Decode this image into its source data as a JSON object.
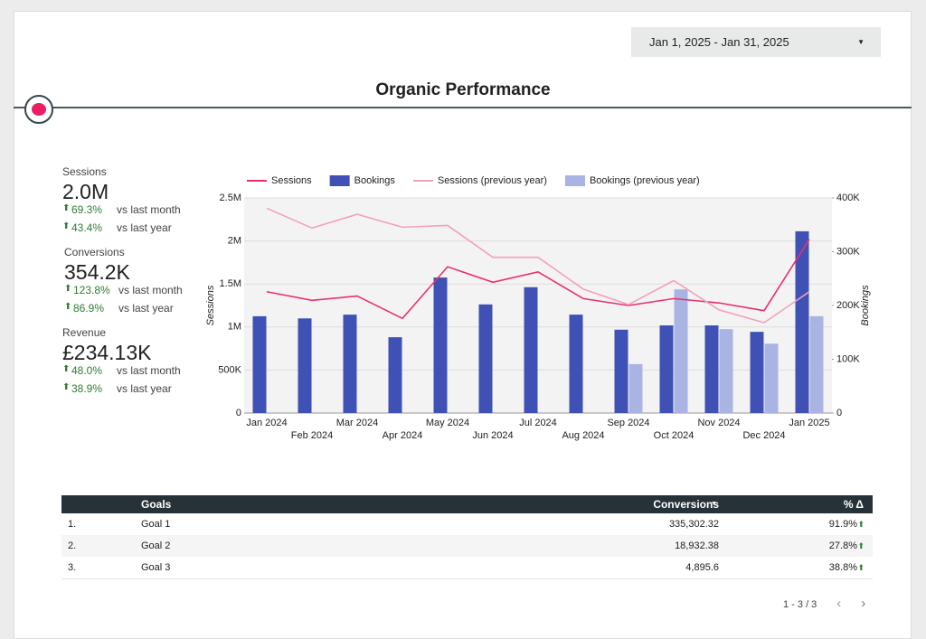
{
  "header": {
    "date_range": "Jan 1, 2025 - Jan 31, 2025",
    "title": "Organic Performance"
  },
  "kpis": [
    {
      "label": "Sessions",
      "value": "2.0M",
      "deltas": [
        {
          "value": "69.3%",
          "label": "vs last month"
        },
        {
          "value": "43.4%",
          "label": "vs last year"
        }
      ]
    },
    {
      "label": "Conversions",
      "value": "354.2K",
      "deltas": [
        {
          "value": "123.8%",
          "label": "vs last month"
        },
        {
          "value": "86.9%",
          "label": "vs last year"
        }
      ]
    },
    {
      "label": "Revenue",
      "value": "£234.13K",
      "deltas": [
        {
          "value": "48.0%",
          "label": "vs last month"
        },
        {
          "value": "38.9%",
          "label": "vs last year"
        }
      ]
    }
  ],
  "chart_data": {
    "type": "combo",
    "y_label": "Sessions",
    "y2_label": "Bookings",
    "grid": true,
    "categories": [
      "Jan 2024",
      "Feb 2024",
      "Mar 2024",
      "Apr 2024",
      "May 2024",
      "Jun 2024",
      "Jul 2024",
      "Aug 2024",
      "Sep 2024",
      "Oct 2024",
      "Nov 2024",
      "Dec 2024",
      "Jan 2025"
    ],
    "ylim": [
      0,
      2500000
    ],
    "yticks": [
      0,
      {
        "value": 500000,
        "label": "500K"
      },
      {
        "value": 1000000,
        "label": "1M"
      },
      {
        "value": 1500000,
        "label": "1.5M"
      },
      {
        "value": 2000000,
        "label": "2M"
      },
      {
        "value": 2500000,
        "label": "2.5M"
      }
    ],
    "y2lim": [
      0,
      400000
    ],
    "y2ticks": [
      0,
      {
        "value": 100000,
        "label": "100K"
      },
      {
        "value": 200000,
        "label": "200K"
      },
      {
        "value": 300000,
        "label": "300K"
      },
      {
        "value": 400000,
        "label": "400K"
      }
    ],
    "series": [
      {
        "name": "Sessions",
        "type": "line",
        "color": "#e8316a",
        "values": [
          1410000,
          1310000,
          1360000,
          1100000,
          1700000,
          1520000,
          1640000,
          1330000,
          1250000,
          1330000,
          1280000,
          1190000,
          2020000
        ]
      },
      {
        "name": "Bookings",
        "type": "bar",
        "axis": "y2",
        "color": "#3f51b5",
        "values": [
          180000,
          176000,
          183000,
          141000,
          252000,
          202000,
          234000,
          183000,
          155000,
          163000,
          163000,
          151000,
          338000
        ]
      },
      {
        "name": "Sessions (previous year)",
        "type": "line",
        "color": "#f4a0b9",
        "values": [
          2380000,
          2150000,
          2310000,
          2160000,
          2180000,
          1810000,
          1810000,
          1440000,
          1260000,
          1540000,
          1200000,
          1050000,
          1410000
        ]
      },
      {
        "name": "Bookings (previous year)",
        "type": "bar",
        "axis": "y2",
        "color": "#aab4e3",
        "values": [
          null,
          null,
          null,
          null,
          null,
          null,
          null,
          null,
          91000,
          230000,
          156000,
          129000,
          180000
        ]
      }
    ]
  },
  "table": {
    "columns": [
      "Goals",
      "Conversions",
      "% Δ"
    ],
    "rows": [
      [
        "1.",
        "Goal 1",
        "335,302.32",
        "91.9%"
      ],
      [
        "2.",
        "Goal 2",
        "18,932.38",
        "27.8%"
      ],
      [
        "3.",
        "Goal 3",
        "4,895.6",
        "38.8%"
      ]
    ],
    "pagination": "1 - 3 / 3"
  }
}
